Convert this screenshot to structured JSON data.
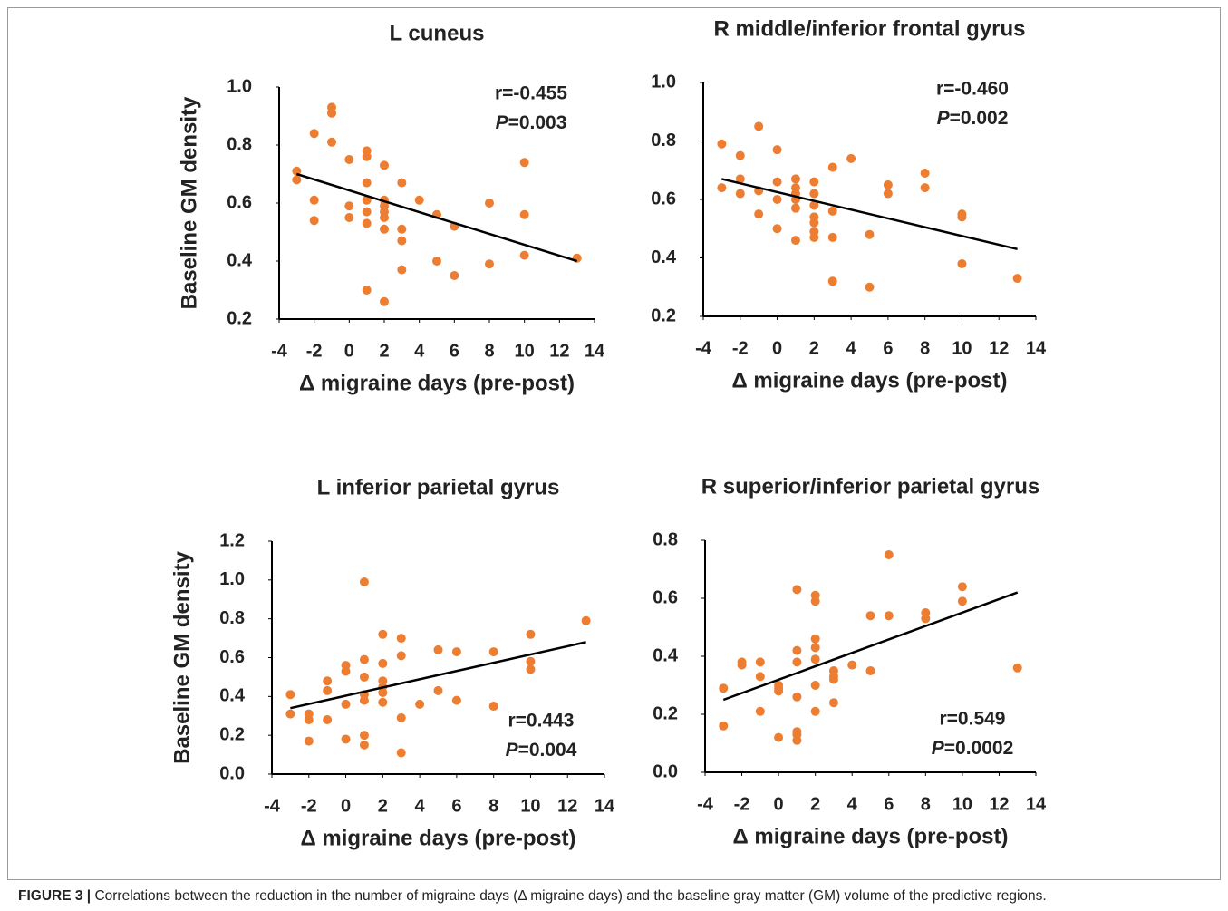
{
  "chart_data": [
    {
      "type": "scatter",
      "title": "L cuneus",
      "ylabel": "Baseline GM density",
      "xlabel": "Δ migraine days (pre-post)",
      "annotations": [
        "r=-0.455",
        "P",
        "=0.003"
      ],
      "color": "#ed7d31",
      "xlim": [
        -4,
        14
      ],
      "xticks": [
        -4,
        -2,
        0,
        2,
        4,
        6,
        8,
        10,
        12,
        14
      ],
      "ylim": [
        0.2,
        1.0
      ],
      "yticks": [
        0.2,
        0.4,
        0.6,
        0.8,
        {
          "value": 1.0,
          "label": "1.0"
        }
      ],
      "x": [
        -3,
        -3,
        -2,
        -2,
        -2,
        -1,
        -1,
        -1,
        0,
        0,
        0,
        1,
        1,
        1,
        1,
        1,
        1,
        1,
        2,
        2,
        2,
        2,
        2,
        2,
        2,
        3,
        3,
        3,
        3,
        4,
        5,
        5,
        6,
        6,
        8,
        8,
        10,
        10,
        10,
        13
      ],
      "values": [
        0.71,
        0.68,
        0.84,
        0.61,
        0.54,
        0.93,
        0.91,
        0.81,
        0.75,
        0.59,
        0.55,
        0.78,
        0.76,
        0.67,
        0.61,
        0.57,
        0.53,
        0.3,
        0.73,
        0.61,
        0.59,
        0.57,
        0.55,
        0.51,
        0.26,
        0.67,
        0.51,
        0.47,
        0.37,
        0.61,
        0.56,
        0.4,
        0.52,
        0.35,
        0.6,
        0.39,
        0.74,
        0.56,
        0.42,
        0.41
      ],
      "trendline": {
        "x": [
          -3,
          13
        ],
        "y": [
          0.7,
          0.4
        ]
      }
    },
    {
      "type": "scatter",
      "title": "R middle/inferior frontal gyrus",
      "xlabel": "Δ migraine days (pre-post)",
      "annotations": [
        "r=-0.460",
        "P",
        "=0.002"
      ],
      "color": "#ed7d31",
      "xlim": [
        -4,
        14
      ],
      "xticks": [
        -4,
        -2,
        0,
        2,
        4,
        6,
        8,
        10,
        12,
        14
      ],
      "ylim": [
        0.2,
        1.0
      ],
      "yticks": [
        0.2,
        0.4,
        0.6,
        0.8,
        {
          "value": 1.0,
          "label": "1.0"
        }
      ],
      "x": [
        -3,
        -3,
        -2,
        -2,
        -2,
        -1,
        -1,
        -1,
        0,
        0,
        0,
        0,
        1,
        1,
        1,
        1,
        1,
        1,
        2,
        2,
        2,
        2,
        2,
        2,
        2,
        3,
        3,
        3,
        3,
        4,
        5,
        5,
        6,
        6,
        8,
        8,
        10,
        10,
        10,
        13
      ],
      "values": [
        0.79,
        0.64,
        0.75,
        0.67,
        0.62,
        0.85,
        0.63,
        0.55,
        0.77,
        0.66,
        0.6,
        0.5,
        0.67,
        0.64,
        0.62,
        0.6,
        0.57,
        0.46,
        0.66,
        0.62,
        0.58,
        0.54,
        0.52,
        0.49,
        0.47,
        0.71,
        0.56,
        0.47,
        0.32,
        0.74,
        0.48,
        0.3,
        0.65,
        0.62,
        0.69,
        0.64,
        0.55,
        0.54,
        0.38,
        0.33
      ],
      "trendline": {
        "x": [
          -3,
          13
        ],
        "y": [
          0.67,
          0.43
        ]
      }
    },
    {
      "type": "scatter",
      "title": "L inferior parietal gyrus",
      "ylabel": "Baseline GM density",
      "xlabel": "Δ migraine days (pre-post)",
      "annotations": [
        "r=0.443",
        "P",
        "=0.004"
      ],
      "color": "#ed7d31",
      "xlim": [
        -4,
        14
      ],
      "xticks": [
        -4,
        -2,
        0,
        2,
        4,
        6,
        8,
        10,
        12,
        14
      ],
      "ylim": [
        0,
        1.2
      ],
      "yticks": [
        {
          "value": 0,
          "label": "0.0"
        },
        0.2,
        0.4,
        0.6,
        0.8,
        {
          "value": 1.0,
          "label": "1.0"
        },
        1.2
      ],
      "x": [
        -3,
        -3,
        -2,
        -2,
        -2,
        -1,
        -1,
        -1,
        0,
        0,
        0,
        0,
        1,
        1,
        1,
        1,
        1,
        1,
        1,
        2,
        2,
        2,
        2,
        2,
        2,
        3,
        3,
        3,
        3,
        4,
        5,
        5,
        6,
        6,
        8,
        8,
        10,
        10,
        10,
        13
      ],
      "values": [
        0.41,
        0.31,
        0.31,
        0.28,
        0.17,
        0.48,
        0.43,
        0.28,
        0.56,
        0.53,
        0.36,
        0.18,
        0.99,
        0.59,
        0.5,
        0.41,
        0.38,
        0.2,
        0.15,
        0.72,
        0.57,
        0.48,
        0.45,
        0.42,
        0.37,
        0.7,
        0.61,
        0.29,
        0.11,
        0.36,
        0.64,
        0.43,
        0.63,
        0.38,
        0.63,
        0.35,
        0.72,
        0.58,
        0.54,
        0.79
      ],
      "trendline": {
        "x": [
          -3,
          13
        ],
        "y": [
          0.34,
          0.68
        ]
      }
    },
    {
      "type": "scatter",
      "title": "R superior/inferior parietal gyrus",
      "xlabel": "Δ migraine days (pre-post)",
      "annotations": [
        "r=0.549",
        "P",
        "=0.0002"
      ],
      "color": "#ed7d31",
      "xlim": [
        -4,
        14
      ],
      "xticks": [
        -4,
        -2,
        0,
        2,
        4,
        6,
        8,
        10,
        12,
        14
      ],
      "ylim": [
        0,
        0.8
      ],
      "yticks": [
        {
          "value": 0,
          "label": "0.0"
        },
        0.2,
        0.4,
        0.6,
        0.8
      ],
      "x": [
        -3,
        -3,
        -2,
        -2,
        -1,
        -1,
        -1,
        0,
        0,
        0,
        0,
        1,
        1,
        1,
        1,
        1,
        1,
        1,
        2,
        2,
        2,
        2,
        2,
        2,
        2,
        3,
        3,
        3,
        3,
        4,
        5,
        5,
        6,
        6,
        8,
        8,
        10,
        10,
        13
      ],
      "values": [
        0.29,
        0.16,
        0.38,
        0.37,
        0.38,
        0.33,
        0.21,
        0.3,
        0.29,
        0.28,
        0.12,
        0.63,
        0.42,
        0.38,
        0.26,
        0.14,
        0.13,
        0.11,
        0.61,
        0.59,
        0.46,
        0.43,
        0.39,
        0.3,
        0.21,
        0.35,
        0.33,
        0.32,
        0.24,
        0.37,
        0.54,
        0.35,
        0.75,
        0.54,
        0.55,
        0.53,
        0.64,
        0.59,
        0.36
      ],
      "trendline": {
        "x": [
          -3,
          13
        ],
        "y": [
          0.25,
          0.62
        ]
      }
    }
  ],
  "caption": {
    "label": "FIGURE 3 |",
    "text": "Correlations between the reduction in the number of migraine days (Δ migraine days) and the baseline gray matter (GM) volume of the predictive regions."
  }
}
